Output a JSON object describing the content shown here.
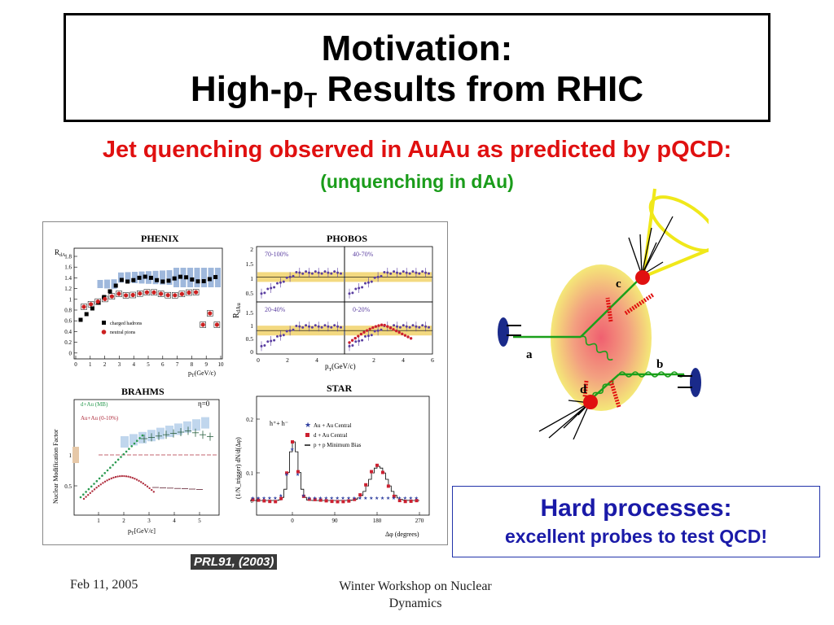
{
  "title": {
    "line1": "Motivation:",
    "line2_prefix": "High-p",
    "line2_sub": "T",
    "line2_suffix": " Results from RHIC"
  },
  "headline": "Jet quenching observed in AuAu as predicted by pQCD:",
  "subline": "(unquenching in dAu)",
  "figure": {
    "phenix": {
      "title": "PHENIX",
      "ylabel": "R",
      "ylabel_sub": "dA",
      "yticks": [
        "1.8",
        "1.6",
        "1.4",
        "1.2",
        "1",
        "0.8",
        "0.6",
        "0.4",
        "0.2",
        "0"
      ],
      "xticks": [
        "0",
        "1",
        "2",
        "3",
        "4",
        "5",
        "6",
        "7",
        "8",
        "9",
        "10"
      ],
      "xlabel": "p",
      "xlabel_sub": "T",
      "xlabel_unit": "(GeV/c)",
      "legend": [
        "charged hadrons",
        "neutral pions"
      ],
      "colors": {
        "charged": "#000000",
        "neutral": "#cc2020",
        "band": "#7fa0d0"
      }
    },
    "phobos": {
      "title": "PHOBOS",
      "ylabel": "R",
      "ylabel_sub": "dAu",
      "panels": [
        "70-100%",
        "40-70%",
        "20-40%",
        "0-20%"
      ],
      "yticks_top": [
        "2",
        "1.5",
        "1",
        "0.5"
      ],
      "yticks_bot": [
        "1.5",
        "1",
        "0.5",
        "0"
      ],
      "xticks_left": [
        "0",
        "2",
        "4"
      ],
      "xticks_right": [
        "2",
        "4",
        "6"
      ],
      "xlabel": "p",
      "xlabel_sub": "T",
      "xlabel_unit": "(GeV/c)",
      "colors": {
        "band": "#f0d060",
        "points": "#5a3ea0",
        "auau": "#cc2030"
      }
    },
    "brahms": {
      "title": "BRAHMS",
      "ylabel": "Nuclear Modification Factor",
      "legend": [
        "d+Au (MB)",
        "Au+Au (0-10%)"
      ],
      "eta": "η=0",
      "yticks": [
        "1",
        "0.5"
      ],
      "xticks": [
        "1",
        "2",
        "3",
        "4",
        "5"
      ],
      "xlabel": "p",
      "xlabel_sub": "T",
      "xlabel_unit": "[GeV/c]",
      "colors": {
        "dau": "#2a9a50",
        "auau": "#b03040",
        "band": "#b0cce8"
      }
    },
    "star": {
      "title": "STAR",
      "label": "h⁺+ h⁻",
      "ylabel": "(1/N_trigger) dN/d(Δφ)",
      "legend": [
        "Au + Au  Central",
        "d + Au  Central",
        "p + p  Minimum Bias"
      ],
      "yticks": [
        "0.2",
        "0.1",
        "0"
      ],
      "xticks": [
        "0",
        "90",
        "180",
        "270"
      ],
      "xlabel": "Δφ (degrees)",
      "colors": {
        "auau": "#3040a0",
        "dau": "#cc2030",
        "pp": "#000000"
      }
    }
  },
  "ref": "PRL91, (2003)",
  "diagram": {
    "labels": {
      "a": "a",
      "b": "b",
      "c": "c",
      "d": "d"
    },
    "colors": {
      "cone": "#f0e81a",
      "gluon": "#1aa01a",
      "medium_outer": "#f4e878",
      "medium_inner": "#f07070",
      "nucleus": "#1a2a8a",
      "parton": "#e01010"
    }
  },
  "hard_box": {
    "line1": "Hard processes:",
    "line2": "excellent probes to test QCD!"
  },
  "footer": {
    "date": "Feb 11, 2005",
    "center": "Winter Workshop on Nuclear Dynamics"
  }
}
